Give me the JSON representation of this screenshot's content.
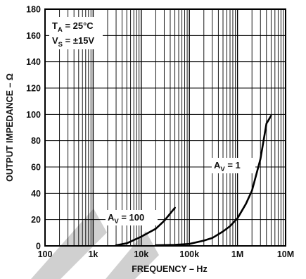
{
  "chart_data": {
    "type": "line",
    "x_scale": "log",
    "xlim": [
      100,
      10000000
    ],
    "ylim": [
      0,
      180
    ],
    "xlabel": "FREQUENCY – Hz",
    "ylabel": "OUTPUT IMPEDANCE – Ω",
    "grid": true,
    "x_ticks": [
      {
        "value": 100,
        "label": "100"
      },
      {
        "value": 1000,
        "label": "1k"
      },
      {
        "value": 10000,
        "label": "10k"
      },
      {
        "value": 100000,
        "label": "100k"
      },
      {
        "value": 1000000,
        "label": "1M"
      },
      {
        "value": 10000000,
        "label": "10M"
      }
    ],
    "y_ticks": [
      {
        "value": 0,
        "label": "0"
      },
      {
        "value": 20,
        "label": "20"
      },
      {
        "value": 40,
        "label": "40"
      },
      {
        "value": 60,
        "label": "60"
      },
      {
        "value": 80,
        "label": "80"
      },
      {
        "value": 100,
        "label": "100"
      },
      {
        "value": 120,
        "label": "120"
      },
      {
        "value": 140,
        "label": "140"
      },
      {
        "value": 160,
        "label": "160"
      },
      {
        "value": 180,
        "label": "180"
      }
    ],
    "conditions": [
      {
        "main": "T",
        "sub": "A",
        "rest": " = 25°C"
      },
      {
        "main": "V",
        "sub": "S",
        "rest": " = ±15V"
      }
    ],
    "series": [
      {
        "label_main": "A",
        "label_sub": "V",
        "label_rest": " = 100",
        "color": "#000000",
        "x": [
          3000,
          5000,
          10000,
          20000,
          30000,
          50000
        ],
        "y": [
          0.5,
          2,
          7,
          13,
          19,
          29
        ]
      },
      {
        "label_main": "A",
        "label_sub": "V",
        "label_rest": " = 1",
        "color": "#000000",
        "x": [
          20000,
          50000,
          100000,
          200000,
          300000,
          500000,
          700000,
          1000000,
          1500000,
          2000000,
          3000000,
          4000000,
          5000000
        ],
        "y": [
          0.5,
          0.8,
          1.5,
          4,
          6,
          11,
          15,
          21,
          32,
          42,
          66,
          93,
          99
        ]
      }
    ],
    "watermark_color": "#c8c8c8"
  }
}
